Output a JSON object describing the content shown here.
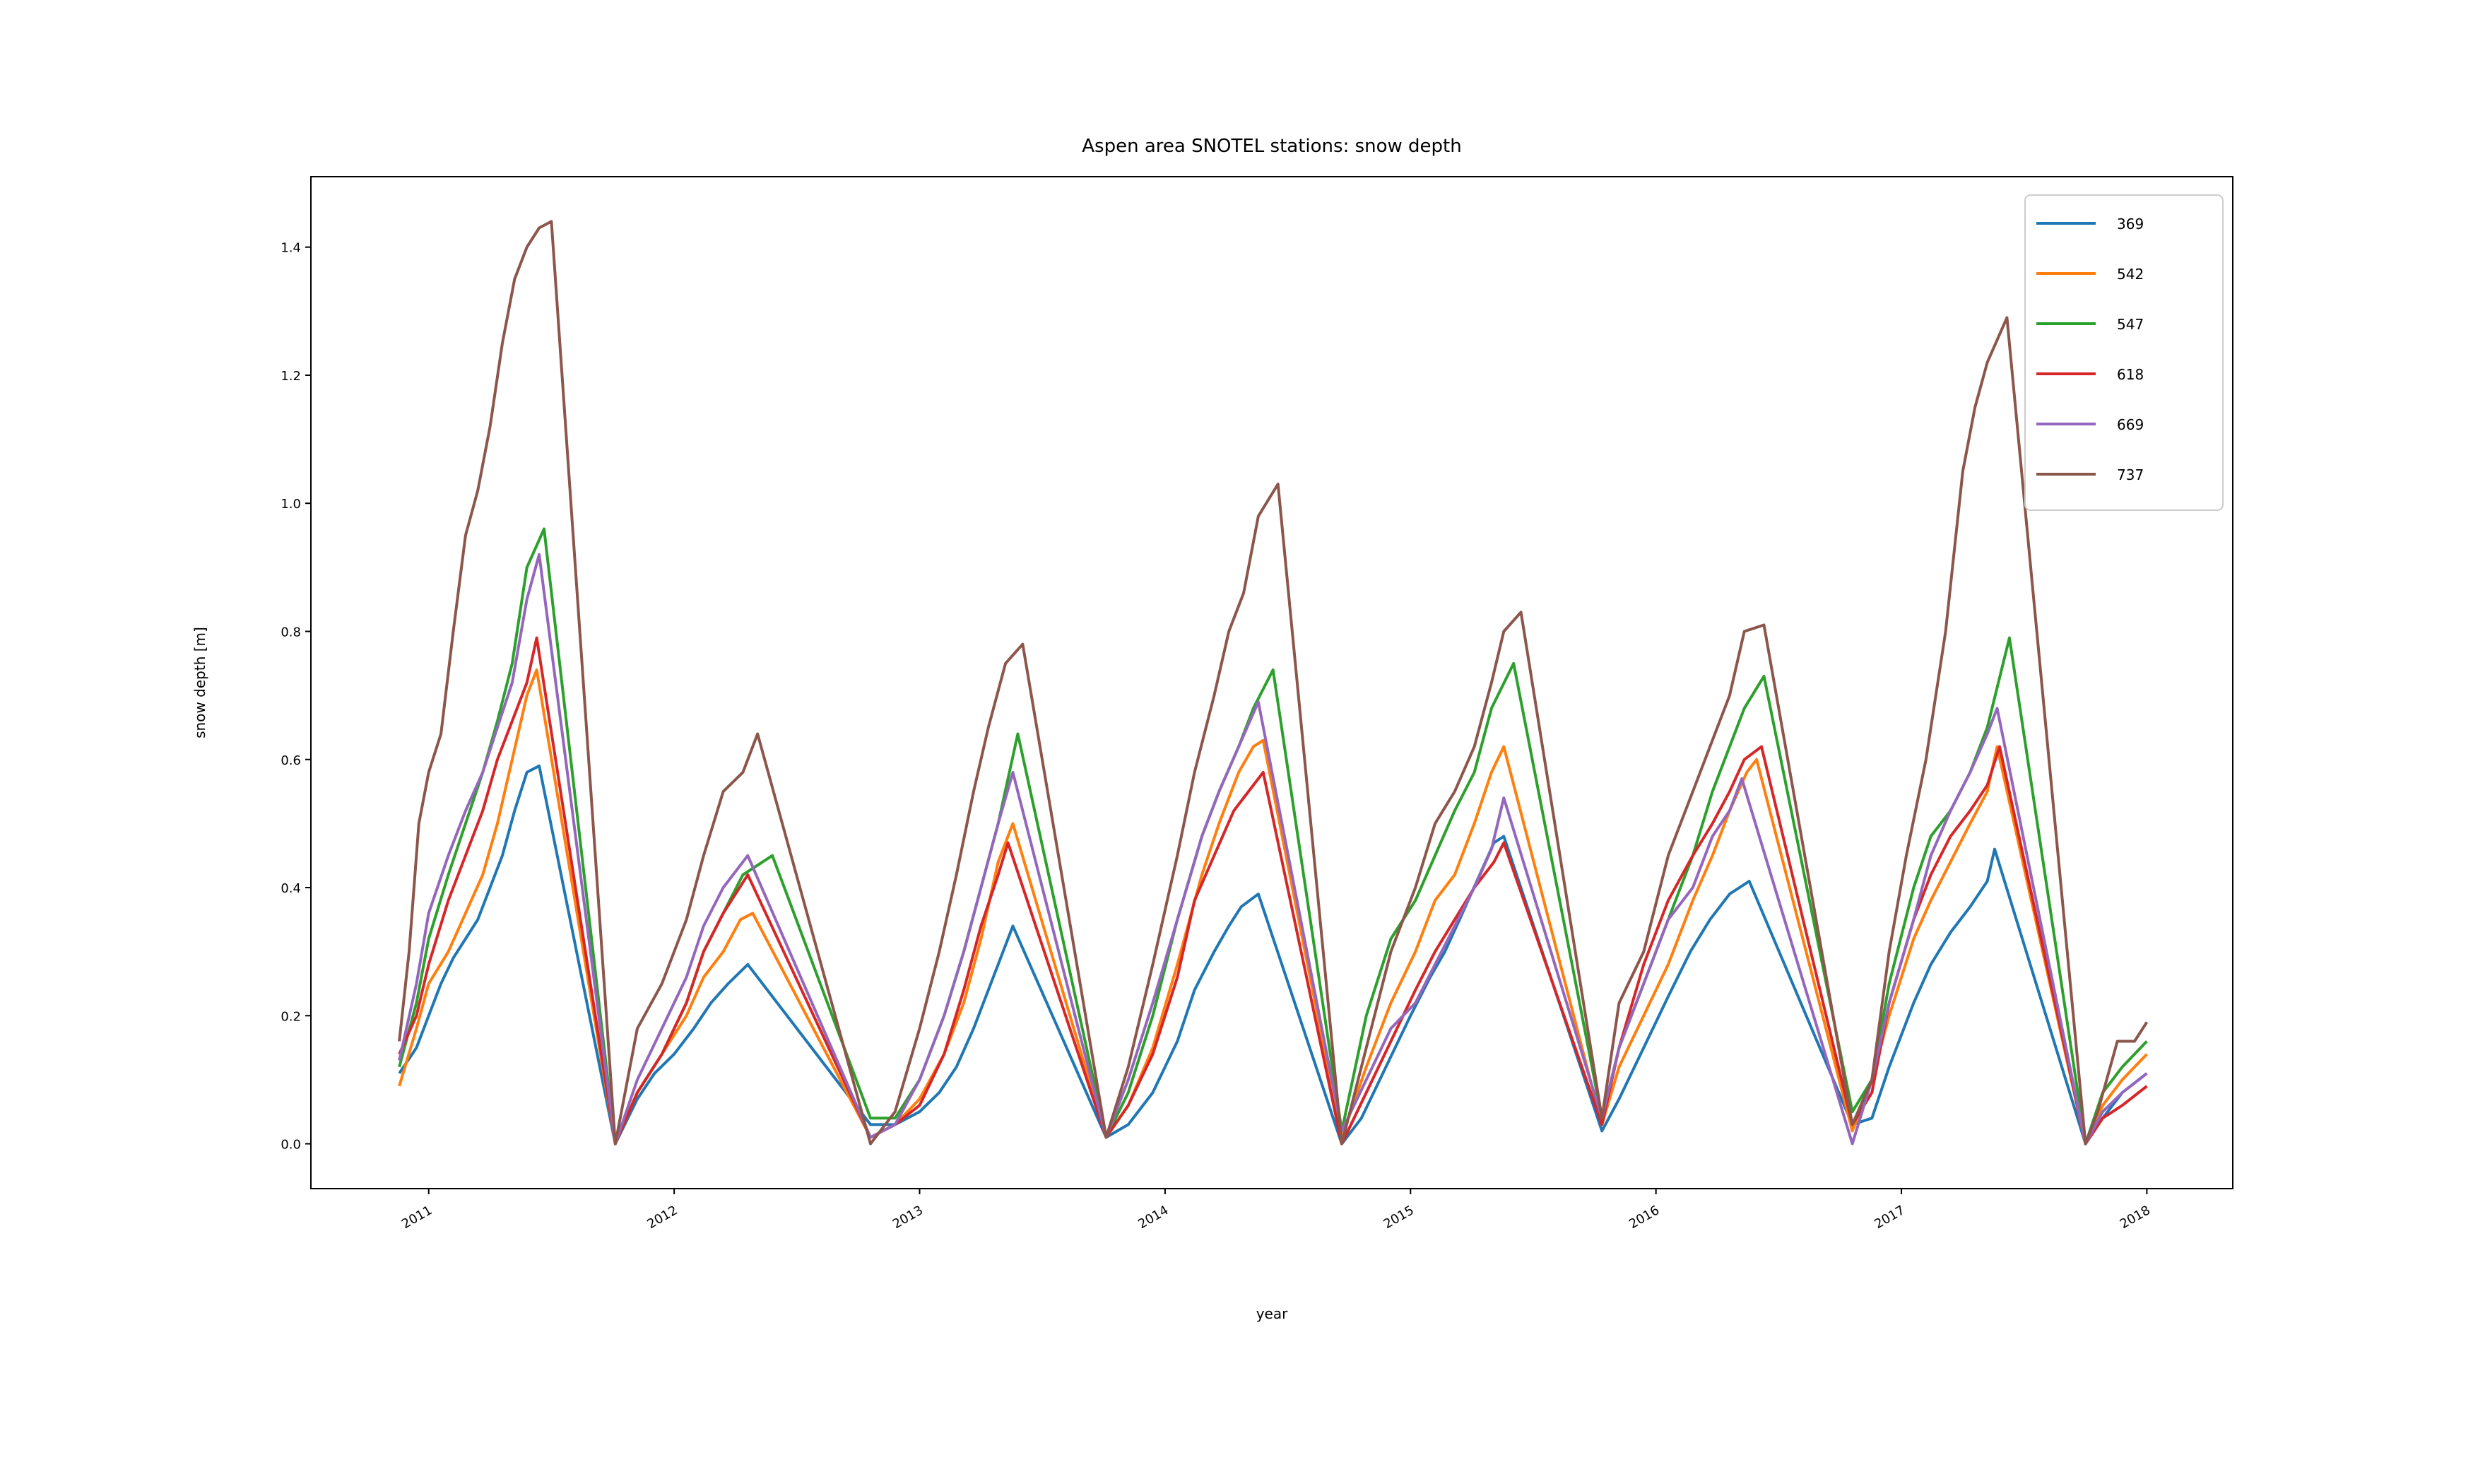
{
  "chart_data": {
    "type": "line",
    "title": "Aspen area SNOTEL stations: snow depth",
    "xlabel": "year",
    "ylabel": "snow depth [m]",
    "xlim": [
      2010.52,
      2018.35
    ],
    "ylim": [
      -0.07,
      1.51
    ],
    "xticks": [
      2011,
      2012,
      2013,
      2014,
      2015,
      2016,
      2017,
      2018
    ],
    "xtick_labels": [
      "2011",
      "2012",
      "2013",
      "2014",
      "2015",
      "2016",
      "2017",
      "2018"
    ],
    "yticks": [
      0.0,
      0.2,
      0.4,
      0.6,
      0.8,
      1.0,
      1.2,
      1.4
    ],
    "ytick_labels": [
      "0.0",
      "0.2",
      "0.4",
      "0.6",
      "0.8",
      "1.0",
      "1.2",
      "1.4"
    ],
    "legend": {
      "position": "top-right"
    },
    "grid": false,
    "series": [
      {
        "name": "369",
        "color": "#1f77b4",
        "x": [
          2010.88,
          2010.95,
          2011.0,
          2011.05,
          2011.1,
          2011.15,
          2011.2,
          2011.25,
          2011.3,
          2011.35,
          2011.4,
          2011.45,
          2011.76,
          2011.85,
          2011.92,
          2012.0,
          2012.08,
          2012.15,
          2012.22,
          2012.3,
          2012.8,
          2012.9,
          2013.0,
          2013.08,
          2013.15,
          2013.22,
          2013.28,
          2013.34,
          2013.38,
          2013.76,
          2013.85,
          2013.95,
          2014.05,
          2014.12,
          2014.2,
          2014.26,
          2014.31,
          2014.38,
          2014.72,
          2014.8,
          2014.9,
          2015.0,
          2015.08,
          2015.14,
          2015.2,
          2015.27,
          2015.34,
          2015.38,
          2015.78,
          2015.85,
          2015.95,
          2016.05,
          2016.14,
          2016.22,
          2016.3,
          2016.38,
          2016.8,
          2016.88,
          2016.95,
          2017.05,
          2017.12,
          2017.2,
          2017.28,
          2017.35,
          2017.38,
          2017.75,
          2017.82,
          2017.9,
          2018.0
        ],
        "y": [
          0.11,
          0.15,
          0.2,
          0.25,
          0.29,
          0.32,
          0.35,
          0.4,
          0.45,
          0.52,
          0.58,
          0.59,
          0.0,
          0.07,
          0.11,
          0.14,
          0.18,
          0.22,
          0.25,
          0.28,
          0.03,
          0.03,
          0.05,
          0.08,
          0.12,
          0.18,
          0.24,
          0.3,
          0.34,
          0.01,
          0.03,
          0.08,
          0.16,
          0.24,
          0.3,
          0.34,
          0.37,
          0.39,
          0.0,
          0.04,
          0.12,
          0.2,
          0.26,
          0.3,
          0.35,
          0.41,
          0.47,
          0.48,
          0.02,
          0.07,
          0.15,
          0.23,
          0.3,
          0.35,
          0.39,
          0.41,
          0.03,
          0.04,
          0.12,
          0.22,
          0.28,
          0.33,
          0.37,
          0.41,
          0.46,
          0.0,
          0.04,
          0.08,
          0.11
        ]
      },
      {
        "name": "542",
        "color": "#ff7f0e",
        "x": [
          2010.88,
          2010.95,
          2011.0,
          2011.08,
          2011.15,
          2011.22,
          2011.28,
          2011.34,
          2011.4,
          2011.44,
          2011.76,
          2011.85,
          2011.95,
          2012.05,
          2012.12,
          2012.2,
          2012.27,
          2012.32,
          2012.8,
          2012.9,
          2013.0,
          2013.1,
          2013.18,
          2013.25,
          2013.32,
          2013.38,
          2013.76,
          2013.85,
          2013.95,
          2014.05,
          2014.15,
          2014.22,
          2014.3,
          2014.36,
          2014.4,
          2014.72,
          2014.82,
          2014.92,
          2015.02,
          2015.1,
          2015.18,
          2015.26,
          2015.33,
          2015.38,
          2015.78,
          2015.85,
          2015.95,
          2016.05,
          2016.15,
          2016.23,
          2016.3,
          2016.37,
          2016.41,
          2016.8,
          2016.88,
          2016.95,
          2017.05,
          2017.12,
          2017.2,
          2017.28,
          2017.35,
          2017.39,
          2017.75,
          2017.82,
          2017.9,
          2018.0
        ],
        "y": [
          0.09,
          0.18,
          0.25,
          0.3,
          0.36,
          0.42,
          0.5,
          0.6,
          0.7,
          0.74,
          0.0,
          0.08,
          0.14,
          0.2,
          0.26,
          0.3,
          0.35,
          0.36,
          0.01,
          0.03,
          0.07,
          0.14,
          0.22,
          0.32,
          0.44,
          0.5,
          0.01,
          0.06,
          0.15,
          0.28,
          0.42,
          0.5,
          0.58,
          0.62,
          0.63,
          0.01,
          0.12,
          0.22,
          0.3,
          0.38,
          0.42,
          0.5,
          0.58,
          0.62,
          0.03,
          0.12,
          0.2,
          0.28,
          0.38,
          0.45,
          0.52,
          0.58,
          0.6,
          0.02,
          0.1,
          0.2,
          0.32,
          0.38,
          0.44,
          0.5,
          0.55,
          0.62,
          0.0,
          0.06,
          0.1,
          0.14
        ]
      },
      {
        "name": "547",
        "color": "#2ca02c",
        "x": [
          2010.88,
          2010.95,
          2011.0,
          2011.08,
          2011.15,
          2011.22,
          2011.28,
          2011.34,
          2011.4,
          2011.47,
          2011.76,
          2011.85,
          2011.95,
          2012.05,
          2012.12,
          2012.2,
          2012.28,
          2012.4,
          2012.8,
          2012.9,
          2013.0,
          2013.1,
          2013.18,
          2013.25,
          2013.32,
          2013.4,
          2013.76,
          2013.85,
          2013.95,
          2014.05,
          2014.15,
          2014.22,
          2014.3,
          2014.36,
          2014.44,
          2014.72,
          2014.82,
          2014.92,
          2015.02,
          2015.1,
          2015.18,
          2015.26,
          2015.33,
          2015.42,
          2015.78,
          2015.85,
          2015.95,
          2016.05,
          2016.15,
          2016.23,
          2016.3,
          2016.36,
          2016.44,
          2016.8,
          2016.88,
          2016.95,
          2017.05,
          2017.12,
          2017.2,
          2017.28,
          2017.35,
          2017.44,
          2017.75,
          2017.82,
          2017.9,
          2018.0
        ],
        "y": [
          0.12,
          0.22,
          0.32,
          0.42,
          0.5,
          0.58,
          0.66,
          0.75,
          0.9,
          0.96,
          0.0,
          0.08,
          0.14,
          0.22,
          0.3,
          0.36,
          0.42,
          0.45,
          0.04,
          0.04,
          0.1,
          0.2,
          0.3,
          0.4,
          0.5,
          0.64,
          0.01,
          0.08,
          0.2,
          0.35,
          0.48,
          0.55,
          0.62,
          0.68,
          0.74,
          0.02,
          0.2,
          0.32,
          0.38,
          0.45,
          0.52,
          0.58,
          0.68,
          0.75,
          0.04,
          0.15,
          0.25,
          0.35,
          0.45,
          0.55,
          0.62,
          0.68,
          0.73,
          0.05,
          0.1,
          0.25,
          0.4,
          0.48,
          0.52,
          0.58,
          0.65,
          0.79,
          0.0,
          0.08,
          0.12,
          0.16
        ]
      },
      {
        "name": "618",
        "color": "#d62728",
        "x": [
          2010.88,
          2010.95,
          2011.0,
          2011.08,
          2011.15,
          2011.22,
          2011.28,
          2011.34,
          2011.4,
          2011.44,
          2011.76,
          2011.85,
          2011.95,
          2012.05,
          2012.12,
          2012.2,
          2012.3,
          2012.8,
          2012.9,
          2013.0,
          2013.1,
          2013.18,
          2013.25,
          2013.32,
          2013.36,
          2013.76,
          2013.85,
          2013.95,
          2014.05,
          2014.12,
          2014.2,
          2014.28,
          2014.36,
          2014.4,
          2014.72,
          2014.82,
          2014.92,
          2015.02,
          2015.1,
          2015.18,
          2015.26,
          2015.34,
          2015.38,
          2015.78,
          2015.85,
          2015.95,
          2016.05,
          2016.15,
          2016.23,
          2016.3,
          2016.36,
          2016.43,
          2016.8,
          2016.88,
          2016.95,
          2017.05,
          2017.12,
          2017.2,
          2017.28,
          2017.35,
          2017.4,
          2017.75,
          2017.82,
          2017.9,
          2018.0
        ],
        "y": [
          0.14,
          0.2,
          0.28,
          0.38,
          0.45,
          0.52,
          0.6,
          0.66,
          0.72,
          0.79,
          0.0,
          0.08,
          0.14,
          0.22,
          0.3,
          0.36,
          0.42,
          0.01,
          0.03,
          0.06,
          0.14,
          0.24,
          0.34,
          0.42,
          0.47,
          0.01,
          0.06,
          0.14,
          0.26,
          0.38,
          0.45,
          0.52,
          0.56,
          0.58,
          0.0,
          0.08,
          0.16,
          0.24,
          0.3,
          0.35,
          0.4,
          0.44,
          0.47,
          0.03,
          0.15,
          0.28,
          0.38,
          0.45,
          0.5,
          0.55,
          0.6,
          0.62,
          0.03,
          0.08,
          0.22,
          0.35,
          0.42,
          0.48,
          0.52,
          0.56,
          0.62,
          0.0,
          0.04,
          0.06,
          0.09
        ]
      },
      {
        "name": "669",
        "color": "#9467bd",
        "x": [
          2010.88,
          2010.95,
          2011.0,
          2011.08,
          2011.15,
          2011.22,
          2011.28,
          2011.34,
          2011.4,
          2011.45,
          2011.76,
          2011.85,
          2011.95,
          2012.05,
          2012.12,
          2012.2,
          2012.3,
          2012.8,
          2012.9,
          2013.0,
          2013.1,
          2013.18,
          2013.25,
          2013.32,
          2013.38,
          2013.76,
          2013.85,
          2013.95,
          2014.05,
          2014.15,
          2014.22,
          2014.3,
          2014.38,
          2014.72,
          2014.82,
          2014.92,
          2015.02,
          2015.1,
          2015.18,
          2015.26,
          2015.33,
          2015.38,
          2015.78,
          2015.85,
          2015.95,
          2016.05,
          2016.15,
          2016.23,
          2016.3,
          2016.35,
          2016.8,
          2016.88,
          2016.95,
          2017.05,
          2017.12,
          2017.2,
          2017.28,
          2017.35,
          2017.39,
          2017.75,
          2017.82,
          2017.9,
          2018.0
        ],
        "y": [
          0.13,
          0.25,
          0.36,
          0.45,
          0.52,
          0.58,
          0.65,
          0.72,
          0.85,
          0.92,
          0.0,
          0.1,
          0.18,
          0.26,
          0.34,
          0.4,
          0.45,
          0.01,
          0.03,
          0.1,
          0.2,
          0.3,
          0.4,
          0.5,
          0.58,
          0.01,
          0.1,
          0.22,
          0.35,
          0.48,
          0.55,
          0.62,
          0.69,
          0.02,
          0.1,
          0.18,
          0.22,
          0.28,
          0.34,
          0.4,
          0.46,
          0.54,
          0.04,
          0.15,
          0.25,
          0.35,
          0.4,
          0.48,
          0.52,
          0.57,
          0.0,
          0.1,
          0.22,
          0.35,
          0.45,
          0.52,
          0.58,
          0.64,
          0.68,
          0.0,
          0.05,
          0.08,
          0.11
        ]
      },
      {
        "name": "737",
        "color": "#8c564b",
        "x": [
          2010.88,
          2010.92,
          2010.96,
          2011.0,
          2011.05,
          2011.1,
          2011.15,
          2011.2,
          2011.25,
          2011.3,
          2011.35,
          2011.4,
          2011.45,
          2011.5,
          2011.76,
          2011.85,
          2011.95,
          2012.05,
          2012.12,
          2012.2,
          2012.28,
          2012.34,
          2012.8,
          2012.9,
          2013.0,
          2013.08,
          2013.15,
          2013.22,
          2013.28,
          2013.35,
          2013.42,
          2013.76,
          2013.85,
          2013.95,
          2014.05,
          2014.12,
          2014.2,
          2014.26,
          2014.32,
          2014.38,
          2014.46,
          2014.72,
          2014.82,
          2014.92,
          2015.02,
          2015.1,
          2015.18,
          2015.26,
          2015.33,
          2015.38,
          2015.45,
          2015.78,
          2015.85,
          2015.95,
          2016.05,
          2016.15,
          2016.22,
          2016.3,
          2016.36,
          2016.44,
          2016.8,
          2016.88,
          2016.95,
          2017.02,
          2017.1,
          2017.18,
          2017.25,
          2017.3,
          2017.35,
          2017.43,
          2017.75,
          2017.8,
          2017.88,
          2017.95,
          2018.0
        ],
        "y": [
          0.16,
          0.3,
          0.5,
          0.58,
          0.64,
          0.8,
          0.95,
          1.02,
          1.12,
          1.25,
          1.35,
          1.4,
          1.43,
          1.44,
          0.0,
          0.18,
          0.25,
          0.35,
          0.45,
          0.55,
          0.58,
          0.64,
          0.0,
          0.05,
          0.18,
          0.3,
          0.42,
          0.55,
          0.65,
          0.75,
          0.78,
          0.01,
          0.12,
          0.28,
          0.45,
          0.58,
          0.7,
          0.8,
          0.86,
          0.98,
          1.03,
          0.0,
          0.15,
          0.3,
          0.4,
          0.5,
          0.55,
          0.62,
          0.72,
          0.8,
          0.83,
          0.04,
          0.22,
          0.3,
          0.45,
          0.55,
          0.62,
          0.7,
          0.8,
          0.81,
          0.03,
          0.1,
          0.3,
          0.45,
          0.6,
          0.8,
          1.05,
          1.15,
          1.22,
          1.29,
          0.0,
          0.05,
          0.16,
          0.16,
          0.19
        ]
      }
    ]
  }
}
